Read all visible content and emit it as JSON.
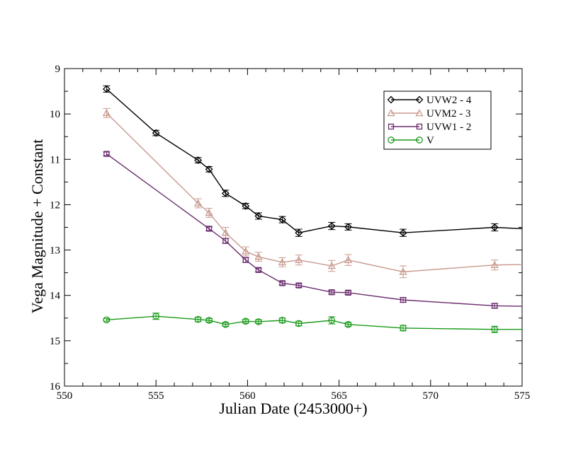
{
  "chart_data": {
    "type": "line",
    "title": "",
    "xlabel": "Julian Date (2453000+)",
    "ylabel": "Vega Magnitude + Constant",
    "xlim": [
      550,
      575
    ],
    "ylim": [
      16,
      9
    ],
    "y_inverted": true,
    "x_major_ticks": [
      550,
      555,
      560,
      565,
      570,
      575
    ],
    "x_minor_step": 1,
    "y_major_ticks": [
      9,
      10,
      11,
      12,
      13,
      14,
      15,
      16
    ],
    "y_minor_step": 0.5,
    "x_tick_labels": [
      "550",
      "555",
      "560",
      "565",
      "570",
      "575"
    ],
    "y_tick_labels": [
      "9",
      "10",
      "11",
      "12",
      "13",
      "14",
      "15",
      "16"
    ],
    "legend_position": "top-right",
    "series": [
      {
        "name": "UVW2 - 4",
        "color": "#000000",
        "marker": "diamond",
        "x": [
          552.3,
          555.0,
          557.3,
          557.9,
          558.8,
          559.9,
          560.6,
          561.9,
          562.8,
          564.6,
          565.5,
          568.5,
          573.5,
          575.0
        ],
        "y": [
          9.45,
          10.42,
          11.02,
          11.22,
          11.75,
          12.03,
          12.25,
          12.33,
          12.62,
          12.47,
          12.49,
          12.62,
          12.5,
          12.53
        ],
        "err": [
          0.07,
          0.06,
          0.06,
          0.06,
          0.07,
          0.06,
          0.07,
          0.07,
          0.08,
          0.08,
          0.07,
          0.08,
          0.08,
          null
        ]
      },
      {
        "name": "UVM2 - 3",
        "color": "#c79a8e",
        "marker": "triangle",
        "x": [
          552.3,
          557.3,
          557.9,
          558.8,
          559.9,
          560.6,
          561.9,
          562.8,
          564.6,
          565.5,
          568.5,
          573.5,
          575.0
        ],
        "y": [
          9.98,
          11.97,
          12.18,
          12.62,
          13.03,
          13.15,
          13.27,
          13.22,
          13.35,
          13.22,
          13.48,
          13.33,
          13.32
        ],
        "err": [
          0.1,
          0.1,
          0.1,
          0.12,
          0.1,
          0.1,
          0.1,
          0.11,
          0.12,
          0.12,
          0.13,
          0.11,
          null
        ]
      },
      {
        "name": "UVW1 - 2",
        "color": "#6b2d6e",
        "marker": "square",
        "x": [
          552.3,
          557.9,
          558.8,
          559.9,
          560.6,
          561.9,
          562.8,
          564.6,
          565.5,
          568.5,
          573.5,
          575.0
        ],
        "y": [
          10.88,
          12.53,
          12.8,
          13.22,
          13.44,
          13.73,
          13.78,
          13.93,
          13.94,
          14.1,
          14.23,
          14.24
        ],
        "err": [
          0.04,
          0.04,
          0.05,
          0.05,
          0.04,
          0.04,
          0.04,
          0.04,
          0.04,
          0.05,
          0.05,
          null
        ]
      },
      {
        "name": "V",
        "color": "#1a9a1a",
        "marker": "circle",
        "x": [
          552.3,
          555.0,
          557.3,
          557.9,
          558.8,
          559.9,
          560.6,
          561.9,
          562.8,
          564.6,
          565.5,
          568.5,
          573.5,
          575.0
        ],
        "y": [
          14.54,
          14.46,
          14.53,
          14.55,
          14.64,
          14.57,
          14.58,
          14.55,
          14.62,
          14.55,
          14.64,
          14.72,
          14.75,
          14.75
        ],
        "err": [
          0.03,
          0.07,
          0.05,
          0.04,
          0.04,
          0.04,
          0.04,
          0.05,
          0.05,
          0.08,
          0.04,
          0.06,
          0.07,
          null
        ]
      }
    ]
  }
}
